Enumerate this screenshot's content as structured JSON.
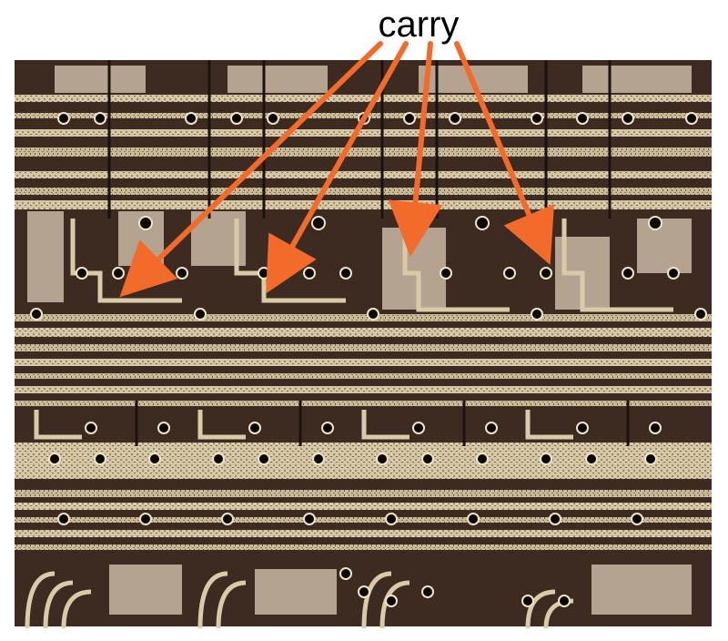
{
  "annotation": {
    "label": "carry",
    "arrow_color": "#f26b2a",
    "arrow_count": 4
  },
  "photo": {
    "subject": "die-photo-micrograph",
    "colors": {
      "background": "#3d2a20",
      "metal": "#d9cba8",
      "silicon": "#b5a391",
      "dark": "#1c120d",
      "via": "#0d0806"
    }
  }
}
